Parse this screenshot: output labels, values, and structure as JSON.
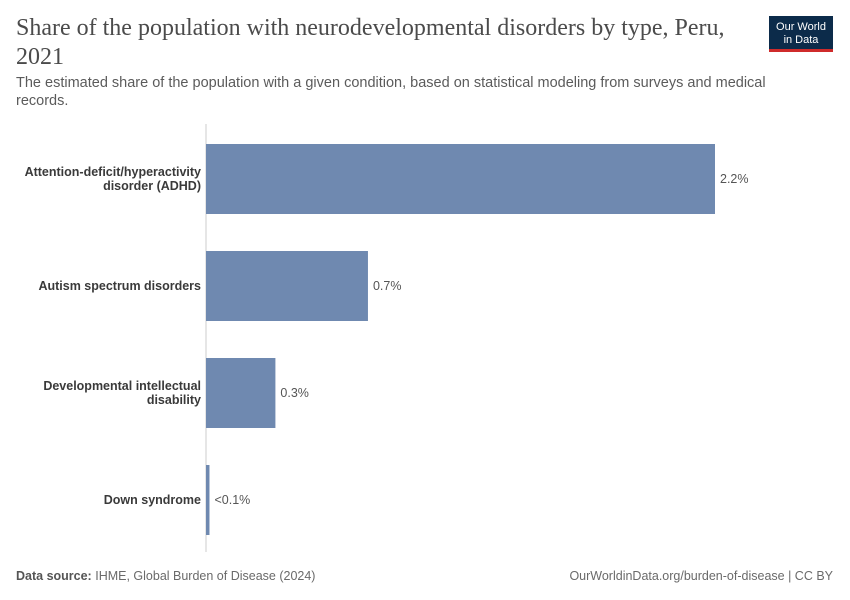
{
  "header": {
    "title": "Share of the population with neurodevelopmental disorders by type, Peru, 2021",
    "subtitle": "The estimated share of the population with a given condition, based on statistical modeling from surveys and medical records.",
    "logo_line1": "Our World",
    "logo_line2": "in Data"
  },
  "footer": {
    "source_label": "Data source:",
    "source_text": "IHME, Global Burden of Disease (2024)",
    "link": "OurWorldinData.org/burden-of-disease | CC BY"
  },
  "colors": {
    "bar": "#6f89b0",
    "axis": "#cccccc"
  },
  "chart_data": {
    "type": "bar",
    "orientation": "horizontal",
    "title": "Share of the population with neurodevelopmental disorders by type, Peru, 2021",
    "categories": [
      [
        "Attention-deficit/hyperactivity",
        "disorder (ADHD)"
      ],
      [
        "Autism spectrum disorders"
      ],
      [
        "Developmental intellectual",
        "disability"
      ],
      [
        "Down syndrome"
      ]
    ],
    "values": [
      2.2,
      0.7,
      0.3,
      0.015
    ],
    "value_labels": [
      "2.2%",
      "0.7%",
      "0.3%",
      "<0.1%"
    ],
    "xlim": [
      0,
      2.2
    ],
    "unit": "%",
    "grid": false
  }
}
